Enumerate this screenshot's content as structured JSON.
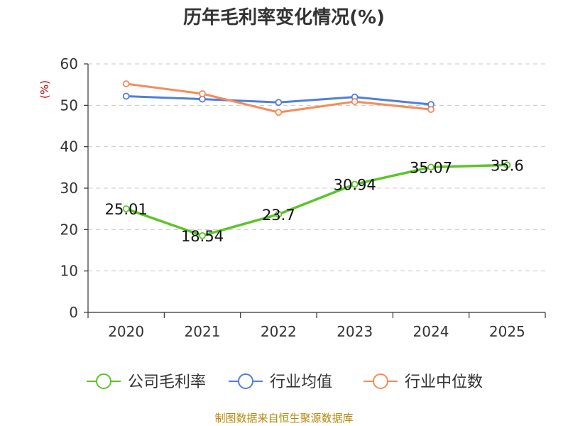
{
  "chart_data": {
    "type": "line",
    "title": "历年毛利率变化情况(%)",
    "ylabel": "(%)",
    "xlabel": "",
    "categories": [
      "2020",
      "2021",
      "2022",
      "2023",
      "2024",
      "2025"
    ],
    "y_ticks": [
      "0",
      "10",
      "20",
      "30",
      "40",
      "50",
      "60"
    ],
    "ylim": [
      0,
      60
    ],
    "grid": true,
    "legend_position": "bottom",
    "series": [
      {
        "name": "公司毛利率",
        "color": "#5cc42a",
        "values": [
          25.01,
          18.54,
          23.7,
          30.94,
          35.07,
          35.6
        ],
        "labels": [
          "25.01",
          "18.54",
          "23.7",
          "30.94",
          "35.07",
          "35.6"
        ]
      },
      {
        "name": "行业均值",
        "color": "#4f7fdc",
        "values": [
          52.2,
          51.5,
          50.7,
          52.0,
          50.2,
          null
        ],
        "labels": []
      },
      {
        "name": "行业中位数",
        "color": "#f48c5a",
        "values": [
          55.2,
          52.8,
          48.3,
          50.9,
          49.0,
          null
        ],
        "labels": []
      }
    ],
    "source": "制图数据来自恒生聚源数据库"
  }
}
